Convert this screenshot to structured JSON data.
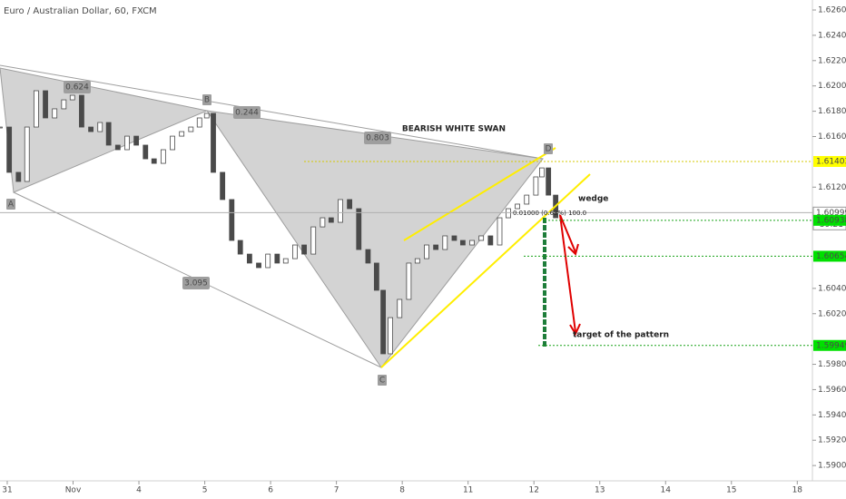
{
  "chart_data": {
    "type": "candlestick",
    "title": "Euro / Australian Dollar, 60, FXCM",
    "xlim": [
      -0.11,
      12.23
    ],
    "ylim": [
      1.58879,
      1.62679
    ],
    "xticks": [
      {
        "value": 0,
        "label": "31"
      },
      {
        "value": 1,
        "label": "Nov"
      },
      {
        "value": 2,
        "label": "4"
      },
      {
        "value": 3,
        "label": "5"
      },
      {
        "value": 4,
        "label": "6"
      },
      {
        "value": 5,
        "label": "7"
      },
      {
        "value": 6,
        "label": "8"
      },
      {
        "value": 7,
        "label": "11"
      },
      {
        "value": 8,
        "label": "12"
      },
      {
        "value": 9,
        "label": "13"
      },
      {
        "value": 10,
        "label": "14"
      },
      {
        "value": 11,
        "label": "15"
      },
      {
        "value": 12,
        "label": "18"
      }
    ],
    "yticks": [
      {
        "value": 1.626,
        "label": "1.62600"
      },
      {
        "value": 1.624,
        "label": "1.62400"
      },
      {
        "value": 1.622,
        "label": "1.62200"
      },
      {
        "value": 1.62,
        "label": "1.62000"
      },
      {
        "value": 1.618,
        "label": "1.61800"
      },
      {
        "value": 1.616,
        "label": "1.61600"
      },
      {
        "value": 1.612,
        "label": "1.61200"
      },
      {
        "value": 1.604,
        "label": "1.60400"
      },
      {
        "value": 1.602,
        "label": "1.60200"
      },
      {
        "value": 1.598,
        "label": "1.59800"
      },
      {
        "value": 1.596,
        "label": "1.59600"
      },
      {
        "value": 1.594,
        "label": "1.59400"
      },
      {
        "value": 1.592,
        "label": "1.59200"
      },
      {
        "value": 1.59,
        "label": "1.59000"
      }
    ],
    "x": [
      -0.11,
      0.03,
      0.17,
      0.3,
      0.44,
      0.58,
      0.72,
      0.86,
      0.99,
      1.13,
      1.27,
      1.41,
      1.54,
      1.68,
      1.82,
      1.96,
      2.1,
      2.23,
      2.37,
      2.51,
      2.65,
      2.79,
      2.92,
      3.03,
      3.13,
      3.27,
      3.41,
      3.54,
      3.68,
      3.82,
      3.96,
      4.1,
      4.23,
      4.37,
      4.51,
      4.65,
      4.79,
      4.92,
      5.06,
      5.2,
      5.34,
      5.48,
      5.61,
      5.71,
      5.82,
      5.96,
      6.1,
      6.23,
      6.37,
      6.51,
      6.65,
      6.79,
      6.92,
      7.06,
      7.2,
      7.34,
      7.48,
      7.61,
      7.75,
      7.89,
      8.03,
      8.12,
      8.22,
      8.33
    ],
    "close": [
      1.61675,
      1.61317,
      1.61245,
      1.61675,
      1.61962,
      1.61747,
      1.61819,
      1.6189,
      1.61926,
      1.61675,
      1.61639,
      1.61711,
      1.61532,
      1.61496,
      1.61603,
      1.61532,
      1.61424,
      1.61388,
      1.61496,
      1.61603,
      1.61639,
      1.61675,
      1.61747,
      1.61783,
      1.61317,
      1.61102,
      1.60779,
      1.60671,
      1.606,
      1.60564,
      1.60671,
      1.606,
      1.60635,
      1.60743,
      1.60671,
      1.60886,
      1.60958,
      1.60922,
      1.61102,
      1.6103,
      1.60707,
      1.606,
      1.60385,
      1.59883,
      1.60169,
      1.60313,
      1.606,
      1.60635,
      1.60743,
      1.60707,
      1.60815,
      1.60779,
      1.60743,
      1.60779,
      1.60815,
      1.60743,
      1.60958,
      1.6103,
      1.61066,
      1.61137,
      1.61281,
      1.61352,
      1.61137,
      1.60958
    ],
    "up_color": "#ffffff",
    "down_color": "#4a4a4a",
    "price_levels": [
      {
        "value": 1.61403,
        "label": "1.61403",
        "color": "#ffff00"
      },
      {
        "value": 1.60999,
        "label": "1.60999",
        "color": "#ffffff"
      },
      {
        "value": 1.60938,
        "label": "1.60938",
        "color": "#00e000"
      },
      {
        "value": 1.60654,
        "label": "1.60654",
        "color": "#00e000"
      },
      {
        "value": 1.59949,
        "label": "1.59949",
        "color": "#00e000"
      }
    ],
    "countdown": "59:21",
    "point_labels": [
      "A",
      "B",
      "C",
      "D"
    ],
    "ratios": [
      0.624,
      0.244,
      0.803,
      3.095
    ],
    "annotations": [
      "BEARISH WHITE SWAN",
      "wedge",
      "target of the pattern",
      "0.01000 (0.63%) 100.0"
    ]
  }
}
